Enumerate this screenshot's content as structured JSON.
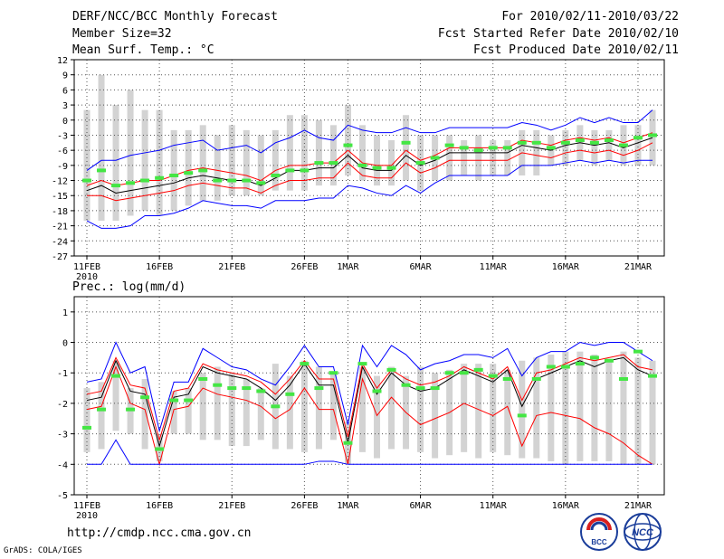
{
  "header": {
    "title": "DERF/NCC/BCC Monthly Forecast",
    "member_size": "Member Size=32",
    "variable": "Mean Surf. Temp.: °C",
    "forecast_period": "For 2010/02/11-2010/03/22",
    "refer_date": "Fcst Started Refer Date 2010/02/10",
    "produced_date": "Fcst Produced Date 2010/02/11"
  },
  "footer": {
    "url": "http://cmdp.ncc.cma.gov.cn",
    "credit": "GrADS: COLA/IGES",
    "logo_left": "BCC",
    "logo_right": "NCC"
  },
  "colors": {
    "box": "#d3d3d3",
    "observed": "#44e644",
    "mean": "#000000",
    "spread": "#ff0000",
    "extreme": "#0000ff"
  },
  "chart_data": [
    {
      "type": "box-ensemble",
      "title": "Mean Surf. Temp.: °C",
      "xlabel": "",
      "ylabel": "",
      "ylim": [
        -27,
        12
      ],
      "yticks": [
        12,
        9,
        6,
        3,
        0,
        -3,
        -6,
        -9,
        -12,
        -15,
        -18,
        -21,
        -24,
        -27
      ],
      "x_days": [
        0,
        1,
        2,
        3,
        4,
        5,
        6,
        7,
        8,
        9,
        10,
        11,
        12,
        13,
        14,
        15,
        16,
        17,
        18,
        19,
        20,
        21,
        22,
        23,
        24,
        25,
        26,
        27,
        28,
        29,
        30,
        31,
        32,
        33,
        34,
        35,
        36,
        37,
        38,
        39
      ],
      "xticks": [
        {
          "day": 0,
          "label": "11FEB",
          "sub": "2010"
        },
        {
          "day": 5,
          "label": "16FEB"
        },
        {
          "day": 10,
          "label": "21FEB"
        },
        {
          "day": 15,
          "label": "26FEB"
        },
        {
          "day": 18,
          "label": "1MAR"
        },
        {
          "day": 23,
          "label": "6MAR"
        },
        {
          "day": 28,
          "label": "11MAR"
        },
        {
          "day": 33,
          "label": "16MAR"
        },
        {
          "day": 38,
          "label": "21MAR"
        }
      ],
      "box_low": [
        -20,
        -20,
        -20,
        -19,
        -18,
        -19,
        -18,
        -17,
        -16,
        -16,
        -15,
        -15,
        -15,
        -14,
        -14,
        -14,
        -13,
        -13,
        -11,
        -12,
        -13,
        -13,
        -12,
        -14,
        -12,
        -12,
        -11,
        -12,
        -11,
        -11,
        -11,
        -11,
        -9,
        -9,
        -8,
        -9,
        -8,
        -9,
        -9,
        -9
      ],
      "box_high": [
        2,
        9,
        3,
        6,
        2,
        2,
        -2,
        -2,
        -1,
        -3,
        -1,
        -2,
        -3,
        -2,
        1,
        1,
        0,
        -1,
        3,
        -1,
        -3,
        -4,
        1,
        -3,
        -3,
        -3,
        -4,
        -3,
        -4,
        -4,
        -2,
        -2,
        -3,
        -2,
        -1,
        -2,
        -2,
        -1,
        -1,
        2
      ],
      "series": [
        {
          "name": "ensemble mean",
          "color": "mean",
          "values": [
            -14,
            -13,
            -14.5,
            -14,
            -13.5,
            -13,
            -12.5,
            -11.5,
            -11,
            -11.5,
            -12,
            -12,
            -13,
            -11.5,
            -10,
            -10,
            -9.5,
            -9.5,
            -7,
            -9.5,
            -10,
            -10,
            -7,
            -9,
            -8,
            -6.5,
            -6.5,
            -6.5,
            -6.5,
            -6.5,
            -5,
            -5.5,
            -6,
            -5,
            -4.5,
            -5,
            -4.5,
            -5.5,
            -4.5,
            -3.5
          ]
        },
        {
          "name": "spread upper",
          "color": "spread",
          "values": [
            -13,
            -12,
            -13,
            -12.5,
            -12,
            -12,
            -11,
            -10,
            -9.5,
            -10,
            -10.5,
            -11,
            -12,
            -10,
            -9,
            -9,
            -8.5,
            -8.5,
            -6,
            -8.5,
            -9,
            -9,
            -6,
            -8,
            -7,
            -5.5,
            -5.5,
            -5.5,
            -5.5,
            -5.5,
            -4,
            -4.5,
            -5,
            -4,
            -3.5,
            -4,
            -3.5,
            -4.5,
            -3.5,
            -2.5
          ]
        },
        {
          "name": "spread lower",
          "color": "spread",
          "values": [
            -15,
            -15,
            -16,
            -15.5,
            -15,
            -14.5,
            -14,
            -13,
            -12.5,
            -13,
            -13.5,
            -13.5,
            -14.5,
            -13,
            -12,
            -12,
            -11.5,
            -11.5,
            -8.5,
            -11,
            -11.5,
            -11.5,
            -8.5,
            -10.5,
            -9.5,
            -8,
            -8,
            -8,
            -8,
            -8,
            -6.5,
            -7,
            -7.5,
            -6.5,
            -6,
            -6.5,
            -6,
            -7,
            -6,
            -4.5
          ]
        },
        {
          "name": "maximum",
          "color": "extreme",
          "values": [
            -10,
            -8,
            -8,
            -7,
            -6.5,
            -6,
            -5,
            -4.5,
            -4,
            -6,
            -5.5,
            -5,
            -6.5,
            -4.5,
            -3.5,
            -2,
            -3.5,
            -4,
            -1,
            -2,
            -2.5,
            -2.5,
            -1.5,
            -2.5,
            -2.5,
            -1.5,
            -1.5,
            -1.5,
            -1.5,
            -1.5,
            -0.5,
            -1,
            -2,
            -1,
            0.5,
            -0.5,
            0.5,
            -0.5,
            -0.5,
            2
          ]
        },
        {
          "name": "minimum",
          "color": "extreme",
          "values": [
            -20,
            -21.5,
            -21.5,
            -21,
            -19,
            -19,
            -18.5,
            -17.5,
            -16,
            -16.5,
            -17,
            -17,
            -17.5,
            -16,
            -16,
            -16,
            -15.5,
            -15.5,
            -13,
            -13.5,
            -14.5,
            -15,
            -13,
            -14.5,
            -12.5,
            -11,
            -11,
            -11,
            -11,
            -11,
            -9,
            -9,
            -9,
            -8.5,
            -8,
            -8.5,
            -8,
            -8.5,
            -8,
            -8
          ]
        }
      ],
      "observed": [
        -12,
        -10,
        -13,
        -12.5,
        -12,
        -11.5,
        -11,
        -10.5,
        -10,
        -12,
        -12,
        -12,
        -12.5,
        -11,
        -10,
        -10,
        -8.5,
        -8.5,
        -5,
        -9,
        -9.5,
        -9.5,
        -4.5,
        -8.5,
        -7.5,
        -5,
        -5.5,
        -6,
        -5.5,
        -5.5,
        -4.5,
        -4.5,
        -5.5,
        -4.5,
        -4,
        -4.5,
        -4,
        -5,
        -3.5,
        -3
      ]
    },
    {
      "type": "box-ensemble",
      "title": "Prec.: log(mm/d)",
      "xlabel": "",
      "ylabel": "",
      "ylim": [
        -5,
        1.5
      ],
      "yticks": [
        1,
        0,
        -1,
        -2,
        -3,
        -4,
        -5
      ],
      "x_days": [
        0,
        1,
        2,
        3,
        4,
        5,
        6,
        7,
        8,
        9,
        10,
        11,
        12,
        13,
        14,
        15,
        16,
        17,
        18,
        19,
        20,
        21,
        22,
        23,
        24,
        25,
        26,
        27,
        28,
        29,
        30,
        31,
        32,
        33,
        34,
        35,
        36,
        37,
        38,
        39
      ],
      "xticks": [
        {
          "day": 0,
          "label": "11FEB",
          "sub": "2010"
        },
        {
          "day": 5,
          "label": "16FEB"
        },
        {
          "day": 10,
          "label": "21FEB"
        },
        {
          "day": 15,
          "label": "26FEB"
        },
        {
          "day": 18,
          "label": "1MAR"
        },
        {
          "day": 23,
          "label": "6MAR"
        },
        {
          "day": 28,
          "label": "11MAR"
        },
        {
          "day": 33,
          "label": "16MAR"
        },
        {
          "day": 38,
          "label": "21MAR"
        }
      ],
      "box_low": [
        -3.6,
        -3.5,
        -2.9,
        -3,
        -3.5,
        -3.9,
        -3,
        -3,
        -3.2,
        -3.2,
        -3.4,
        -3.4,
        -3.2,
        -3.5,
        -3.5,
        -3.6,
        -3.5,
        -3.2,
        -4,
        -3.6,
        -3.8,
        -3.5,
        -3.5,
        -3.6,
        -3.8,
        -3.7,
        -3.6,
        -3.8,
        -3.6,
        -3.7,
        -3.8,
        -3.8,
        -3.9,
        -4,
        -3.9,
        -3.9,
        -3.9,
        -4,
        -4,
        -4
      ],
      "box_high": [
        -1.5,
        -1.3,
        -0.6,
        -1.5,
        -1.2,
        -3,
        -1.6,
        -1.5,
        -1,
        -0.8,
        -1,
        -1.2,
        -1.5,
        -0.7,
        -1.1,
        -0.6,
        -0.8,
        -1,
        -2.6,
        -0.8,
        -1.1,
        -0.8,
        -1.1,
        -0.8,
        -1,
        -0.9,
        -0.7,
        -0.7,
        -0.7,
        -0.9,
        -0.6,
        -0.5,
        -0.4,
        -0.3,
        -0.3,
        -0.4,
        -0.6,
        -0.3,
        -0.5,
        -0.6
      ],
      "series": [
        {
          "name": "ensemble mean",
          "color": "mean",
          "values": [
            -1.9,
            -1.8,
            -0.6,
            -1.6,
            -1.7,
            -3.4,
            -1.8,
            -1.7,
            -0.8,
            -1,
            -1.1,
            -1.2,
            -1.5,
            -1.9,
            -1.4,
            -0.7,
            -1.4,
            -1.4,
            -3.3,
            -0.8,
            -1.7,
            -1,
            -1.4,
            -1.6,
            -1.5,
            -1.2,
            -0.9,
            -1.1,
            -1.3,
            -0.9,
            -2.1,
            -1.2,
            -1,
            -0.8,
            -0.6,
            -0.8,
            -0.6,
            -0.5,
            -0.9,
            -1.1
          ]
        },
        {
          "name": "spread upper",
          "color": "spread",
          "values": [
            -1.7,
            -1.6,
            -0.5,
            -1.4,
            -1.5,
            -3.2,
            -1.6,
            -1.5,
            -0.7,
            -0.9,
            -1,
            -1.1,
            -1.3,
            -1.7,
            -1.2,
            -0.6,
            -1.2,
            -1.2,
            -3.1,
            -0.7,
            -1.5,
            -0.9,
            -1.2,
            -1.4,
            -1.3,
            -1.1,
            -0.8,
            -1,
            -1.2,
            -0.8,
            -1.9,
            -1,
            -0.9,
            -0.7,
            -0.5,
            -0.6,
            -0.5,
            -0.4,
            -0.8,
            -0.9
          ]
        },
        {
          "name": "spread lower",
          "color": "spread",
          "values": [
            -2.2,
            -2.1,
            -0.8,
            -2,
            -2.2,
            -4,
            -2.2,
            -2.1,
            -1.5,
            -1.7,
            -1.8,
            -1.9,
            -2.1,
            -2.5,
            -2.2,
            -1.5,
            -2.2,
            -2.2,
            -4,
            -1.2,
            -2.4,
            -1.8,
            -2.3,
            -2.7,
            -2.5,
            -2.3,
            -2,
            -2.2,
            -2.4,
            -2.1,
            -3.4,
            -2.4,
            -2.3,
            -2.4,
            -2.5,
            -2.8,
            -3,
            -3.3,
            -3.7,
            -4
          ]
        },
        {
          "name": "maximum",
          "color": "extreme",
          "values": [
            -1.3,
            -1.2,
            0,
            -1,
            -0.8,
            -2.9,
            -1.3,
            -1.3,
            -0.2,
            -0.5,
            -0.8,
            -0.9,
            -1.2,
            -1.4,
            -0.8,
            -0.1,
            -0.8,
            -0.8,
            -2.7,
            -0.1,
            -0.8,
            -0.1,
            -0.4,
            -0.9,
            -0.7,
            -0.6,
            -0.4,
            -0.4,
            -0.5,
            -0.2,
            -1.1,
            -0.5,
            -0.3,
            -0.3,
            0,
            -0.1,
            0,
            0,
            -0.3,
            -0.6
          ]
        },
        {
          "name": "minimum",
          "color": "extreme",
          "values": [
            -4,
            -4,
            -3.2,
            -4,
            -4,
            -4,
            -4,
            -4,
            -4,
            -4,
            -4,
            -4,
            -4,
            -4,
            -4,
            -4,
            -3.9,
            -3.9,
            -4,
            -4,
            -4,
            -4,
            -4,
            -4,
            -4,
            -4,
            -4,
            -4,
            -4,
            -4,
            -4,
            -4,
            -4,
            -4,
            -4,
            -4,
            -4,
            -4,
            -4,
            -4
          ]
        }
      ],
      "observed": [
        -2.8,
        -2.2,
        -1.1,
        -2.2,
        -1.8,
        -3.5,
        -1.9,
        -1.9,
        -1.2,
        -1.4,
        -1.5,
        -1.5,
        -1.6,
        -2.1,
        -1.7,
        -0.7,
        -1.5,
        -1,
        -3.3,
        -0.7,
        -1.6,
        -0.9,
        -1.4,
        -1.5,
        -1.5,
        -1,
        -1,
        -0.9,
        -1.1,
        -1.2,
        -2.4,
        -1.2,
        -0.8,
        -0.8,
        -0.7,
        -0.5,
        -0.6,
        -1.2,
        -0.3,
        -1.1
      ]
    }
  ]
}
